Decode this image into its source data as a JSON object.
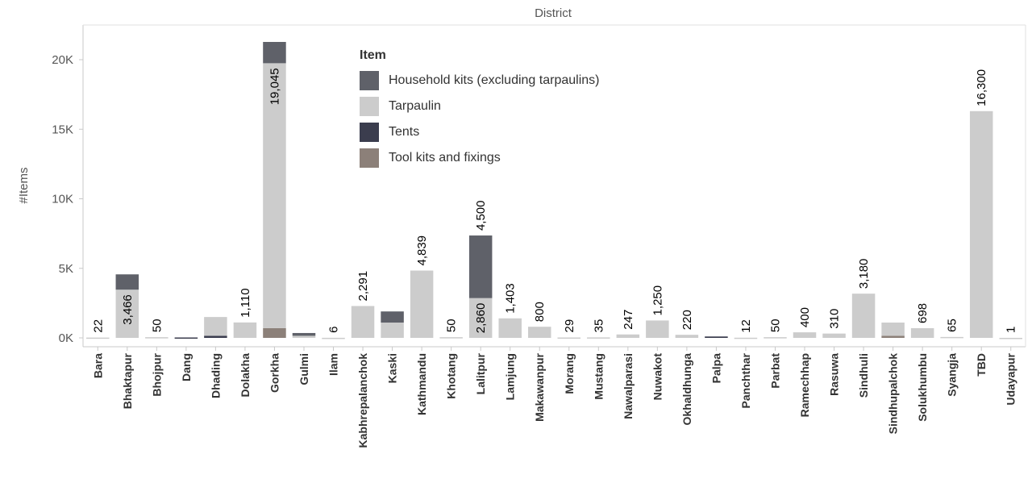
{
  "chart_data": {
    "type": "bar",
    "stacked": true,
    "title": "District",
    "ylabel": "#Items",
    "ylim": [
      -500,
      22500
    ],
    "yticks": [
      0,
      5000,
      10000,
      15000,
      20000
    ],
    "ytick_labels": [
      "0K",
      "5K",
      "10K",
      "15K",
      "20K"
    ],
    "legend_title": "Item",
    "legend_position": "top-center",
    "categories": [
      "Bara",
      "Bhaktapur",
      "Bhojpur",
      "Dang",
      "Dhading",
      "Dolakha",
      "Gorkha",
      "Gulmi",
      "Ilam",
      "Kabhrepalanchok",
      "Kaski",
      "Kathmandu",
      "Khotang",
      "Lalitpur",
      "Lamjung",
      "Makawanpur",
      "Morang",
      "Mustang",
      "Nawalparasi",
      "Nuwakot",
      "Okhaldhunga",
      "Palpa",
      "Panchthar",
      "Parbat",
      "Ramechhap",
      "Rasuwa",
      "Sindhuli",
      "Sindhupalchok",
      "Solukhumbu",
      "Syangja",
      "TBD",
      "Udayapur"
    ],
    "series": [
      {
        "name": "Tool kits and fixings",
        "color": "#8c8079",
        "values": [
          0,
          0,
          0,
          0,
          0,
          0,
          700,
          0,
          0,
          0,
          0,
          0,
          0,
          0,
          0,
          0,
          0,
          0,
          0,
          0,
          0,
          0,
          0,
          0,
          0,
          0,
          0,
          150,
          0,
          0,
          0,
          0
        ]
      },
      {
        "name": "Tents",
        "color": "#3b3d4e",
        "values": [
          0,
          0,
          0,
          30,
          150,
          0,
          0,
          0,
          0,
          0,
          0,
          0,
          0,
          0,
          0,
          0,
          0,
          0,
          0,
          0,
          0,
          100,
          0,
          0,
          0,
          0,
          0,
          0,
          0,
          0,
          0,
          0
        ]
      },
      {
        "name": "Tarpaulin",
        "color": "#cccccc",
        "values": [
          22,
          3466,
          50,
          0,
          1350,
          1110,
          19045,
          150,
          6,
          2291,
          1100,
          4839,
          50,
          2860,
          1403,
          800,
          29,
          35,
          247,
          1250,
          220,
          0,
          12,
          50,
          400,
          310,
          3180,
          950,
          698,
          65,
          16300,
          1
        ]
      },
      {
        "name": "Household kits (excluding tarpaulins)",
        "color": "#5f6169",
        "values": [
          0,
          1100,
          0,
          0,
          0,
          0,
          1530,
          200,
          0,
          0,
          800,
          0,
          0,
          4500,
          0,
          0,
          0,
          0,
          0,
          0,
          0,
          0,
          0,
          0,
          0,
          0,
          0,
          0,
          0,
          0,
          0,
          0
        ]
      }
    ],
    "data_labels": [
      "22",
      "3,466",
      "50",
      "",
      "",
      "1,110",
      "19,045",
      "",
      "6",
      "2,291",
      "",
      "4,839",
      "50",
      "2,860",
      "1,403",
      "800",
      "29",
      "35",
      "247",
      "1,250",
      "220",
      "",
      "12",
      "50",
      "400",
      "310",
      "3,180",
      "",
      "698",
      "65",
      "16,300",
      "1"
    ],
    "data_label_series": [
      "Tarpaulin",
      "Tarpaulin",
      "Tarpaulin",
      "",
      "",
      "Tarpaulin",
      "Tarpaulin",
      "",
      "Tarpaulin",
      "Tarpaulin",
      "",
      "Tarpaulin",
      "Tarpaulin",
      "Tarpaulin",
      "Tarpaulin",
      "Tarpaulin",
      "Tarpaulin",
      "Tarpaulin",
      "Tarpaulin",
      "Tarpaulin",
      "Tarpaulin",
      "",
      "Tarpaulin",
      "Tarpaulin",
      "Tarpaulin",
      "Tarpaulin",
      "Tarpaulin",
      "",
      "Tarpaulin",
      "Tarpaulin",
      "Tarpaulin",
      "Tarpaulin"
    ],
    "extra_labels": [
      {
        "category": "Lalitpur",
        "series": "Household kits (excluding tarpaulins)",
        "text": "4,500"
      }
    ],
    "grid": false
  }
}
